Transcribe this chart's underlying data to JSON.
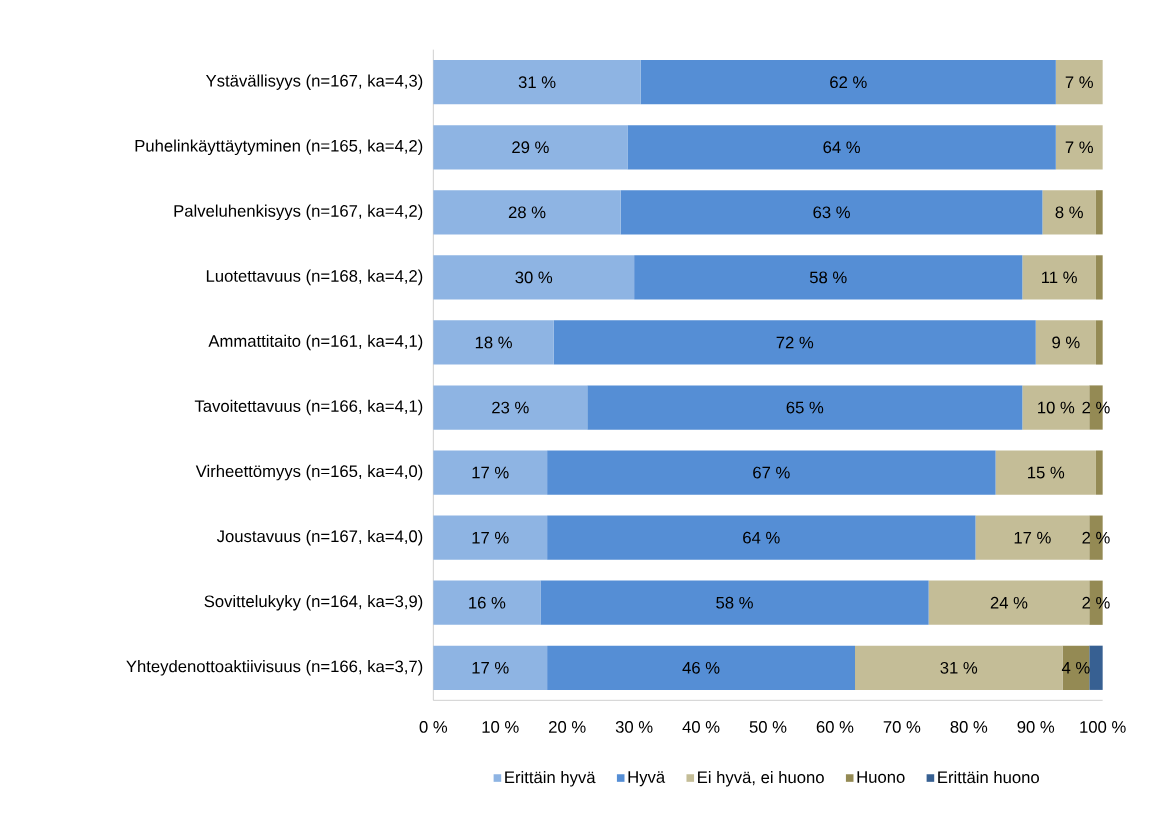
{
  "chart_data": {
    "type": "bar",
    "orientation": "horizontal",
    "stacked": true,
    "legend": "bottom",
    "categories": [
      "Ystävällisyys (n=167, ka=4,3)",
      "Puhelinkäyttäytyminen (n=165, ka=4,2)",
      "Palveluhenkisyys (n=167, ka=4,2)",
      "Luotettavuus (n=168, ka=4,2)",
      "Ammattitaito (n=161, ka=4,1)",
      "Tavoitettavuus (n=166, ka=4,1)",
      "Virheettömyys (n=165, ka=4,0)",
      "Joustavuus (n=167, ka=4,0)",
      "Sovittelukyky (n=164, ka=3,9)",
      "Yhteydenottoaktiivisuus (n=166, ka=3,7)"
    ],
    "series": [
      {
        "name": "Erittäin hyvä",
        "color": "#8eb4e3",
        "values": [
          31,
          29,
          28,
          30,
          18,
          23,
          17,
          17,
          16,
          17
        ],
        "value_labels": [
          "31 %",
          "29 %",
          "28 %",
          "30 %",
          "18 %",
          "23 %",
          "17 %",
          "17 %",
          "16 %",
          "17 %"
        ]
      },
      {
        "name": "Hyvä",
        "color": "#558ed5",
        "values": [
          62,
          64,
          63,
          58,
          72,
          65,
          67,
          64,
          58,
          46
        ],
        "value_labels": [
          "62 %",
          "64 %",
          "63 %",
          "58 %",
          "72 %",
          "65 %",
          "67 %",
          "64 %",
          "58 %",
          "46 %"
        ]
      },
      {
        "name": "Ei hyvä, ei huono",
        "color": "#c4bd97",
        "values": [
          7,
          7,
          8,
          11,
          9,
          10,
          15,
          17,
          24,
          31
        ],
        "value_labels": [
          "7 %",
          "7 %",
          "8 %",
          "11 %",
          "9 %",
          "10 %",
          "15 %",
          "17 %",
          "24 %",
          "31 %"
        ]
      },
      {
        "name": "Huono",
        "color": "#948a54",
        "values": [
          0,
          0,
          1,
          1,
          1,
          2,
          1,
          2,
          2,
          4
        ],
        "value_labels": [
          null,
          null,
          null,
          null,
          null,
          "2 %",
          null,
          "2 %",
          "2 %",
          "4 %"
        ]
      },
      {
        "name": "Erittäin huono",
        "color": "#376092",
        "values": [
          0,
          0,
          0,
          0,
          0,
          0,
          0,
          0,
          0,
          2
        ],
        "value_labels": [
          null,
          null,
          null,
          null,
          null,
          null,
          null,
          null,
          null,
          null
        ]
      }
    ],
    "xlim": [
      0,
      100
    ],
    "xticks": [
      {
        "value": 0,
        "label": "0 %"
      },
      {
        "value": 10,
        "label": "10 %"
      },
      {
        "value": 20,
        "label": "20 %"
      },
      {
        "value": 30,
        "label": "30 %"
      },
      {
        "value": 40,
        "label": "40 %"
      },
      {
        "value": 50,
        "label": "50 %"
      },
      {
        "value": 60,
        "label": "60 %"
      },
      {
        "value": 70,
        "label": "70 %"
      },
      {
        "value": 80,
        "label": "80 %"
      },
      {
        "value": 90,
        "label": "90 %"
      },
      {
        "value": 100,
        "label": "100 %"
      }
    ]
  }
}
